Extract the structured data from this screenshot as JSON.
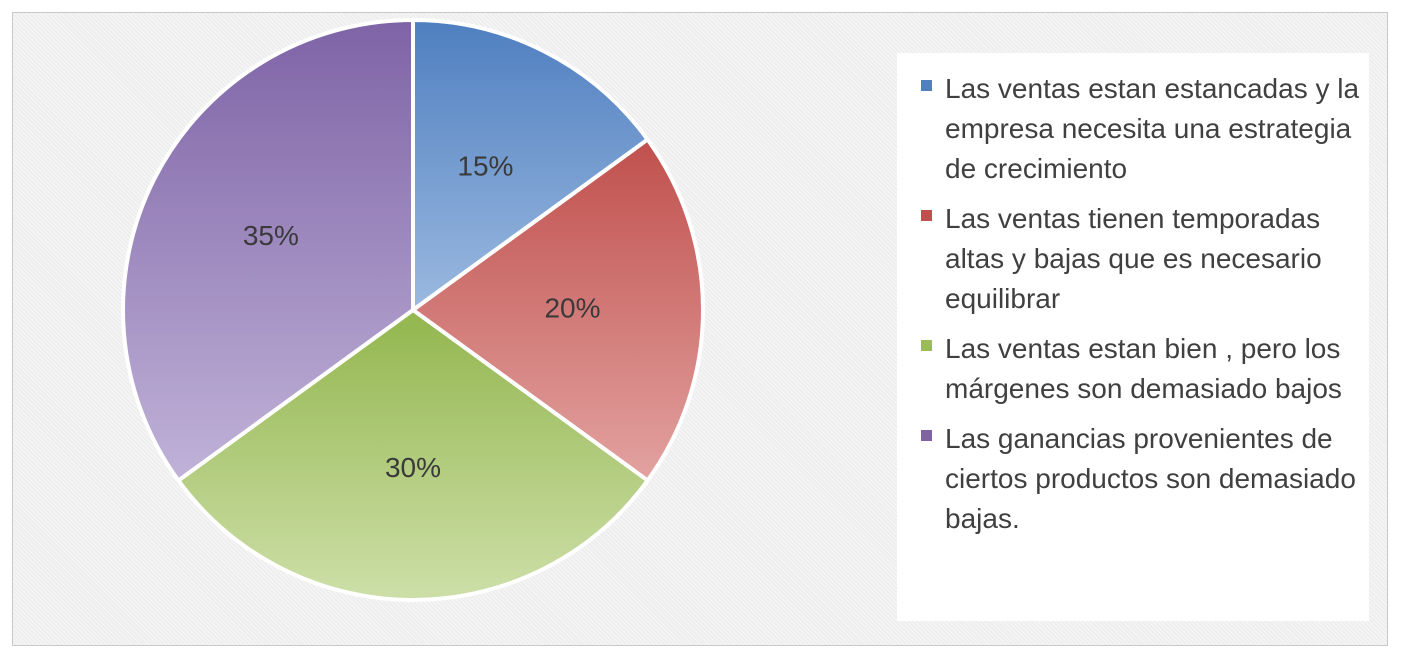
{
  "chart_data": {
    "type": "pie",
    "categories": [
      "Las ventas estan estancadas y la empresa necesita una estrategia de crecimiento",
      "Las ventas tienen temporadas altas y bajas que es necesario equilibrar",
      "Las ventas estan bien , pero los márgenes son demasiado bajos",
      "Las ganancias provenientes de ciertos productos son demasiado bajas."
    ],
    "values": [
      15,
      20,
      30,
      35
    ],
    "data_labels": [
      "15%",
      "20%",
      "30%",
      "35%"
    ],
    "colors": [
      "#6a93cb",
      "#cf6b69",
      "#a9c66d",
      "#9b83bd"
    ],
    "start_angle_deg": 0,
    "direction": "clockwise",
    "legend_position": "right",
    "title": ""
  }
}
